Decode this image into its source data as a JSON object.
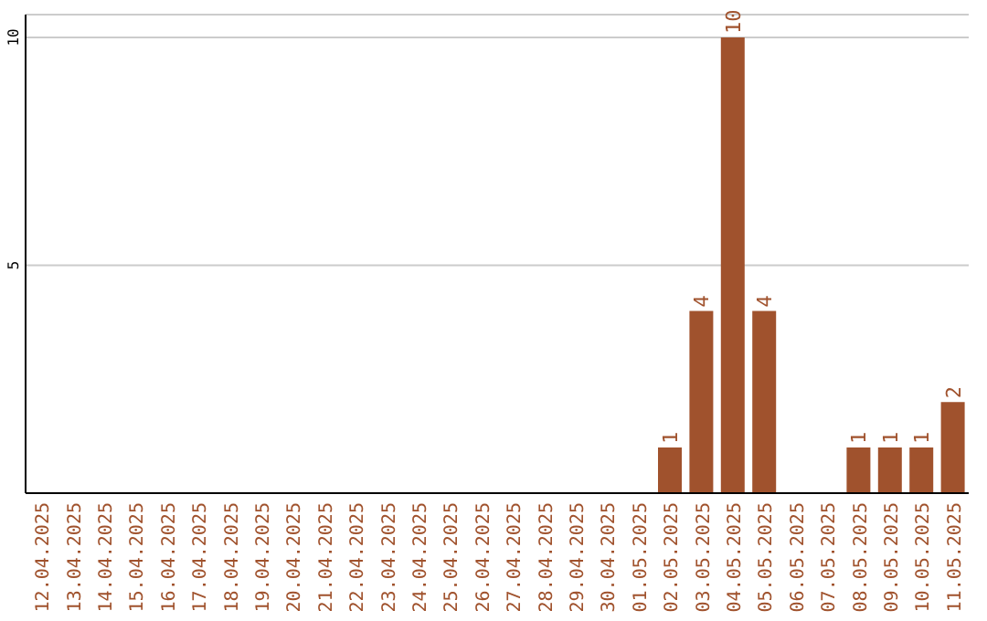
{
  "chart_data": {
    "type": "bar",
    "categories": [
      "12.04.2025",
      "13.04.2025",
      "14.04.2025",
      "15.04.2025",
      "16.04.2025",
      "17.04.2025",
      "18.04.2025",
      "19.04.2025",
      "20.04.2025",
      "21.04.2025",
      "22.04.2025",
      "23.04.2025",
      "24.04.2025",
      "25.04.2025",
      "26.04.2025",
      "27.04.2025",
      "28.04.2025",
      "29.04.2025",
      "30.04.2025",
      "01.05.2025",
      "02.05.2025",
      "03.05.2025",
      "04.05.2025",
      "05.05.2025",
      "06.05.2025",
      "07.05.2025",
      "08.05.2025",
      "09.05.2025",
      "10.05.2025",
      "11.05.2025"
    ],
    "values": [
      0,
      0,
      0,
      0,
      0,
      0,
      0,
      0,
      0,
      0,
      0,
      0,
      0,
      0,
      0,
      0,
      0,
      0,
      0,
      0,
      1,
      4,
      10,
      4,
      0,
      0,
      1,
      1,
      1,
      2
    ],
    "value_labels": [
      null,
      null,
      null,
      null,
      null,
      null,
      null,
      null,
      null,
      null,
      null,
      null,
      null,
      null,
      null,
      null,
      null,
      null,
      null,
      null,
      "1",
      "4",
      "10",
      "4",
      null,
      null,
      "1",
      "1",
      "1",
      "2"
    ],
    "color": "#a0522d",
    "ylim": [
      0,
      10.5
    ],
    "yticks": [
      5,
      10
    ],
    "grid": "y"
  }
}
